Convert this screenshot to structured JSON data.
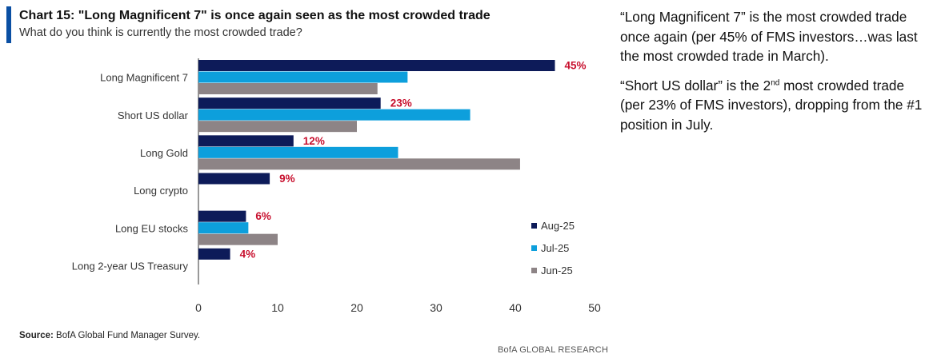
{
  "header": {
    "title": "Chart 15: \"Long Magnificent 7\" is once again seen as the most crowded trade",
    "subtitle": "What do you think is currently the most crowded trade?"
  },
  "chart_data": {
    "type": "bar",
    "orientation": "horizontal",
    "title": "Chart 15: \"Long Magnificent 7\" is once again seen as the most crowded trade",
    "subtitle": "What do you think is currently the most crowded trade?",
    "categories": [
      "Long Magnificent 7",
      "Short US dollar",
      "Long Gold",
      "Long crypto",
      "Long EU stocks",
      "Long 2-year US Treasury"
    ],
    "series": [
      {
        "name": "Aug-25",
        "color": "#0d1b59",
        "values": [
          45,
          23,
          12,
          9,
          6,
          4
        ],
        "labels": [
          "45%",
          "23%",
          "12%",
          "9%",
          "6%",
          "4%"
        ]
      },
      {
        "name": "Jul-25",
        "color": "#0d9fdc",
        "values": [
          26.4,
          34.3,
          25.2,
          null,
          6.3,
          null
        ]
      },
      {
        "name": "Jun-25",
        "color": "#8d8486",
        "values": [
          22.6,
          20,
          40.6,
          null,
          10,
          null
        ]
      }
    ],
    "xlim": [
      0,
      50
    ],
    "xticks": [
      "0",
      "10",
      "20",
      "30",
      "40",
      "50"
    ],
    "label_color": "#c8102e",
    "legend_position": "right",
    "xlabel": "",
    "ylabel": ""
  },
  "source": {
    "label": "Source:",
    "text": " BofA Global Fund Manager Survey."
  },
  "footer": "BofA GLOBAL RESEARCH",
  "commentary": {
    "p1": "“Long Magnificent 7” is the most crowded trade once again (per 45% of FMS investors…was last the most crowded trade in March).",
    "p2_a": "“Short US dollar” is the 2",
    "p2_sup": "nd",
    "p2_b": " most crowded trade (per 23% of FMS investors), dropping from the #1 position in July."
  }
}
